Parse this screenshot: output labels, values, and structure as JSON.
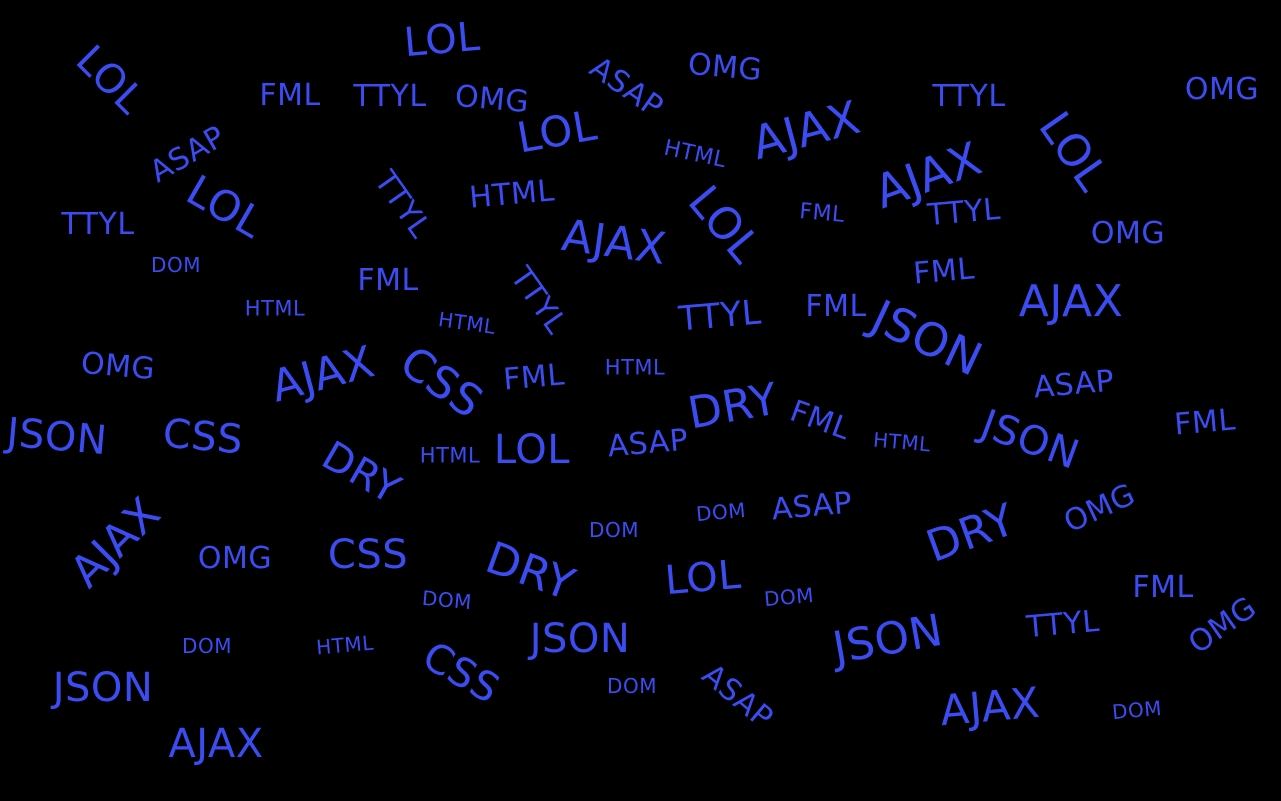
{
  "theme": {
    "background": "#000000",
    "word_color": "#3b4df2"
  },
  "words": [
    "LOL",
    "LOL",
    "FML",
    "TTYL",
    "OMG",
    "ASAP",
    "OMG",
    "TTYL",
    "OMG",
    "LOL",
    "ASAP",
    "HTML",
    "AJAX",
    "LOL",
    "AJAX",
    "LOL",
    "TTYL",
    "TTYL",
    "HTML",
    "FML",
    "TTYL",
    "DOM",
    "AJAX",
    "LOL",
    "OMG",
    "FML",
    "FML",
    "HTML",
    "TTYL",
    "HTML",
    "TTYL",
    "FML",
    "JSON",
    "AJAX",
    "OMG",
    "AJAX",
    "CSS",
    "FML",
    "HTML",
    "ASAP",
    "JSON",
    "CSS",
    "DRY",
    "HTML",
    "LOL",
    "ASAP",
    "FML",
    "HTML",
    "JSON",
    "FML",
    "DRY",
    "DRY",
    "DOM",
    "DOM",
    "ASAP",
    "OMG",
    "AJAX",
    "OMG",
    "CSS",
    "DRY",
    "LOL",
    "DOM",
    "DOM",
    "FML",
    "DOM",
    "HTML",
    "JSON",
    "JSON",
    "TTYL",
    "OMG",
    "JSON",
    "CSS",
    "DOM",
    "ASAP",
    "AJAX",
    "DOM",
    "AJAX"
  ]
}
